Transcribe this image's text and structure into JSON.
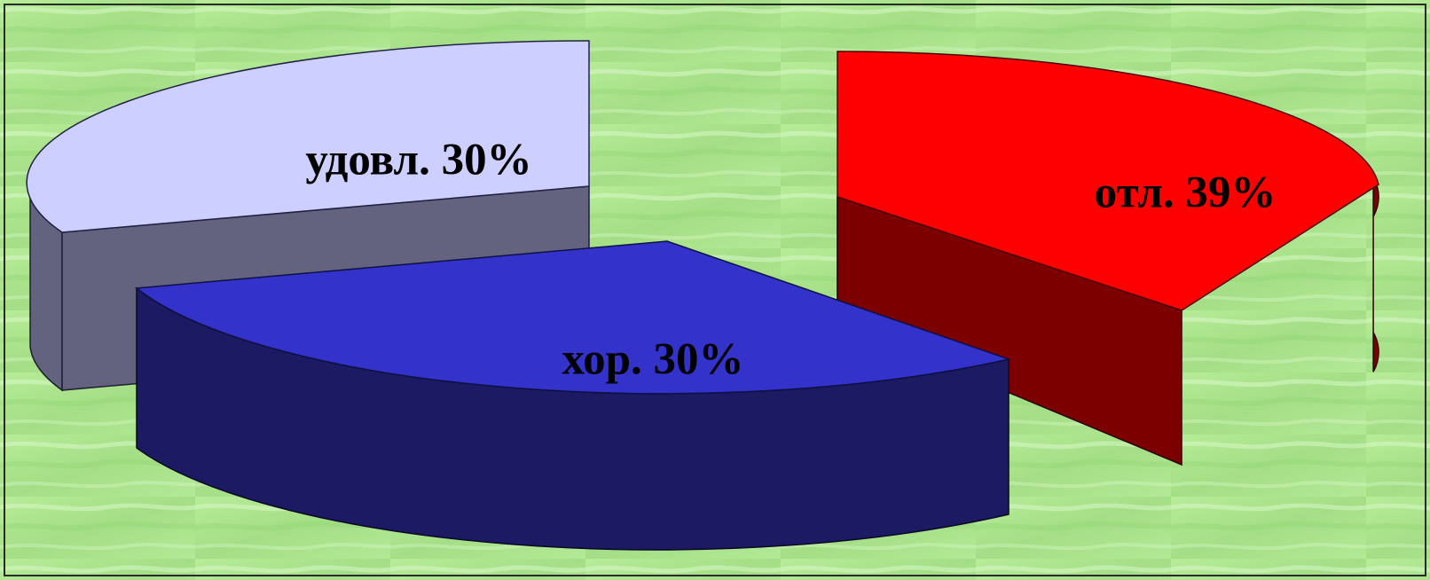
{
  "chart_data": {
    "type": "pie",
    "categories": [
      "отл.",
      "удовл.",
      "хор."
    ],
    "values": [
      39,
      30,
      30
    ],
    "labels": [
      "отл. 39%",
      "удовл. 30%",
      "хор. 30%"
    ],
    "exploded": true,
    "three_d": true,
    "legend": "none",
    "colors": {
      "отл.": {
        "top": "#ff0000",
        "side": "#7d0000"
      },
      "удовл.": {
        "top": "#cccfff",
        "side": "#63637f"
      },
      "хор.": {
        "top": "#3333cc",
        "side": "#1b1a62"
      }
    }
  }
}
